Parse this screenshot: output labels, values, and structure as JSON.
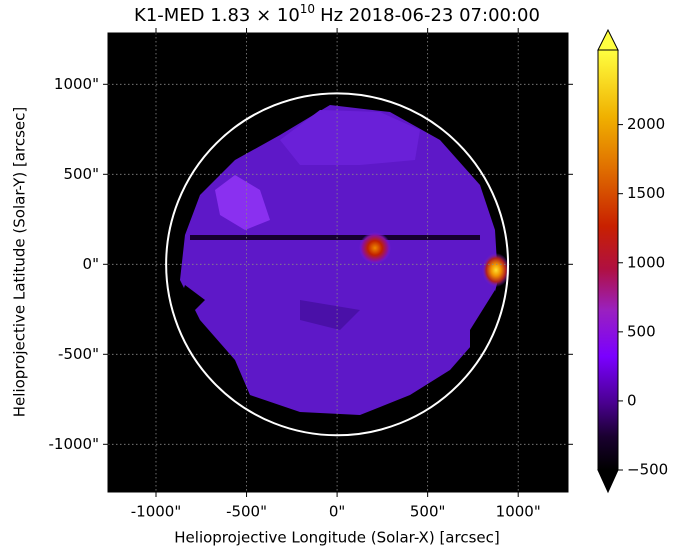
{
  "chart_data": {
    "type": "image-map",
    "title": "K1-MED 1.83 × 10",
    "title_exponent": "10",
    "title_suffix": "Hz 2018-06-23 07:00:00",
    "x_label": "Helioprojective Longitude (Solar-X) [arcsec]",
    "y_label": "Helioprojective Latitude (Solar-Y) [arcsec]",
    "xlim": [
      -1265,
      1275
    ],
    "ylim": [
      -1265,
      1285
    ],
    "xticks": [
      {
        "value": -1000,
        "label": "-1000\""
      },
      {
        "value": -500,
        "label": "-500\""
      },
      {
        "value": 0,
        "label": "0\""
      },
      {
        "value": 500,
        "label": "500\""
      },
      {
        "value": 1000,
        "label": "1000\""
      }
    ],
    "yticks": [
      {
        "value": -1000,
        "label": "-1000\""
      },
      {
        "value": -500,
        "label": "-500\""
      },
      {
        "value": 0,
        "label": "0\""
      },
      {
        "value": 500,
        "label": "500\""
      },
      {
        "value": 1000,
        "label": "1000\""
      }
    ],
    "grid": true,
    "limb_radius": 944,
    "colorbar_lim": [
      -500,
      2540
    ],
    "colorbar_ticks": [
      {
        "value": -500,
        "label": "−500"
      },
      0,
      500,
      1000,
      1500,
      2000
    ]
  }
}
